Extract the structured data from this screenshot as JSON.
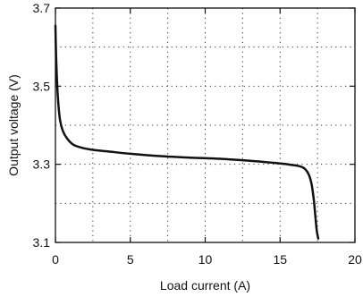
{
  "chart_data": {
    "type": "line",
    "title": "",
    "xlabel": "Load current (A)",
    "ylabel": "Output voltage (V)",
    "xlim": [
      0,
      20
    ],
    "ylim": [
      3.1,
      3.7
    ],
    "x_ticks": [
      0,
      5,
      10,
      15,
      20
    ],
    "y_ticks": [
      3.1,
      3.3,
      3.5,
      3.7
    ],
    "x_tick_labels": [
      "0",
      "5",
      "10",
      "15",
      "20"
    ],
    "y_tick_labels": [
      "3.1",
      "3.3",
      "3.5",
      "3.7"
    ],
    "x_grid": [
      2.5,
      5,
      7.5,
      10,
      12.5,
      15,
      17.5
    ],
    "y_grid": [
      3.2,
      3.3,
      3.4,
      3.5,
      3.6
    ],
    "grid": "dotted",
    "legend": "none",
    "line_color": "#111111",
    "series": [
      {
        "x": [
          0.0,
          0.05,
          0.15,
          0.3,
          0.5,
          0.8,
          1.2,
          1.8,
          2.5,
          3.5,
          5.0,
          7.0,
          9.0,
          11.0,
          13.0,
          14.5,
          15.5,
          16.2,
          16.6,
          16.9,
          17.1,
          17.25,
          17.35,
          17.45,
          17.55
        ],
        "y": [
          3.655,
          3.57,
          3.48,
          3.415,
          3.385,
          3.365,
          3.35,
          3.342,
          3.337,
          3.333,
          3.327,
          3.321,
          3.317,
          3.314,
          3.309,
          3.304,
          3.3,
          3.296,
          3.29,
          3.275,
          3.25,
          3.21,
          3.17,
          3.13,
          3.11
        ]
      }
    ]
  }
}
